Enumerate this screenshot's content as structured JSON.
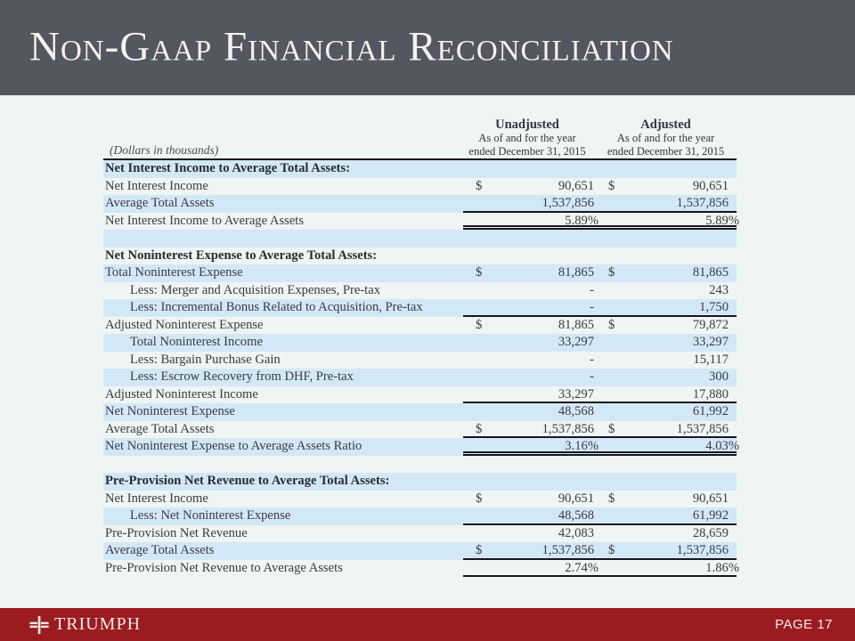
{
  "slide": {
    "title": "Non-Gaap Financial Reconciliation"
  },
  "table": {
    "dollars_note": "(Dollars in thousands)",
    "columns": [
      {
        "name": "Unadjusted",
        "sub1": "As of and for the year",
        "sub2": "ended December 31, 2015"
      },
      {
        "name": "Adjusted",
        "sub1": "As of and for the year",
        "sub2": "ended December 31, 2015"
      }
    ],
    "rows": [
      {
        "label": "Net Interest Income to Average Total Assets:",
        "bold": true,
        "shade": "blue",
        "line": "none"
      },
      {
        "label": "Net Interest Income",
        "d1": "$",
        "v1": "90,651",
        "d2": "$",
        "v2": "90,651",
        "shade": "light",
        "line": "none"
      },
      {
        "label": "Average Total Assets",
        "v1": "1,537,856",
        "v2": "1,537,856",
        "shade": "blue",
        "line": "single"
      },
      {
        "label": "Net Interest Income to Average Assets",
        "v1": "5.89%",
        "v2": "5.89%",
        "pct": true,
        "shade": "light",
        "line": "double"
      },
      {
        "label": "",
        "shade": "blue",
        "line": "none"
      },
      {
        "label": "Net Noninterest Expense to Average Total Assets:",
        "bold": true,
        "shade": "light",
        "line": "none"
      },
      {
        "label": "Total Noninterest Expense",
        "d1": "$",
        "v1": "81,865",
        "d2": "$",
        "v2": "81,865",
        "shade": "blue",
        "line": "none"
      },
      {
        "label": "Less: Merger and Acquisition Expenses, Pre-tax",
        "indent": true,
        "v1": "-",
        "v2": "243",
        "shade": "light",
        "line": "none"
      },
      {
        "label": "Less: Incremental Bonus Related to Acquisition, Pre-tax",
        "indent": true,
        "v1": "-",
        "v2": "1,750",
        "shade": "blue",
        "line": "single"
      },
      {
        "label": "Adjusted  Noninterest Expense",
        "d1": "$",
        "v1": "81,865",
        "d2": "$",
        "v2": "79,872",
        "shade": "light",
        "line": "none"
      },
      {
        "label": "Total Noninterest Income",
        "indent": true,
        "v1": "33,297",
        "v2": "33,297",
        "shade": "blue",
        "line": "none"
      },
      {
        "label": "Less: Bargain Purchase Gain",
        "indent": true,
        "v1": "-",
        "v2": "15,117",
        "shade": "light",
        "line": "none"
      },
      {
        "label": "Less: Escrow Recovery from DHF, Pre-tax",
        "indent": true,
        "v1": "-",
        "v2": "300",
        "shade": "blue",
        "line": "none"
      },
      {
        "label": "Adjusted Noninterest Income",
        "v1": "33,297",
        "v2": "17,880",
        "shade": "light",
        "line": "single"
      },
      {
        "label": "Net Noninterest Expense",
        "v1": "48,568",
        "v2": "61,992",
        "shade": "blue",
        "line": "none"
      },
      {
        "label": "Average Total Assets",
        "d1": "$",
        "v1": "1,537,856",
        "d2": "$",
        "v2": "1,537,856",
        "shade": "light",
        "line": "single"
      },
      {
        "label": "Net Noninterest Expense to Average Assets Ratio",
        "v1": "3.16%",
        "v2": "4.03%",
        "pct": true,
        "shade": "blue",
        "line": "double"
      },
      {
        "label": "",
        "shade": "light",
        "line": "none"
      },
      {
        "label": "Pre-Provision Net Revenue to Average Total Assets:",
        "bold": true,
        "shade": "blue",
        "line": "none"
      },
      {
        "label": "Net Interest Income",
        "d1": "$",
        "v1": "90,651",
        "d2": "$",
        "v2": "90,651",
        "shade": "light",
        "line": "none"
      },
      {
        "label": "Less: Net Noninterest Expense",
        "indent": true,
        "v1": "48,568",
        "v2": "61,992",
        "shade": "blue",
        "line": "single"
      },
      {
        "label": "Pre-Provision Net Revenue",
        "v1": "42,083",
        "v2": "28,659",
        "shade": "light",
        "line": "none"
      },
      {
        "label": "Average Total Assets",
        "d1": "$",
        "v1": "1,537,856",
        "d2": "$",
        "v2": "1,537,856",
        "shade": "blue",
        "line": "single"
      },
      {
        "label": "Pre-Provision Net Revenue to Average Assets",
        "v1": "2.74%",
        "v2": "1.86%",
        "pct": true,
        "shade": "light",
        "line": "single"
      }
    ]
  },
  "footer": {
    "brand": "TRIUMPH",
    "page_label": "PAGE 17"
  },
  "colors": {
    "header_bg": "#545660",
    "accent_red": "#9b1c20",
    "stripe_blue": "#d3e8f7",
    "page_bg": "#eef5f2"
  }
}
